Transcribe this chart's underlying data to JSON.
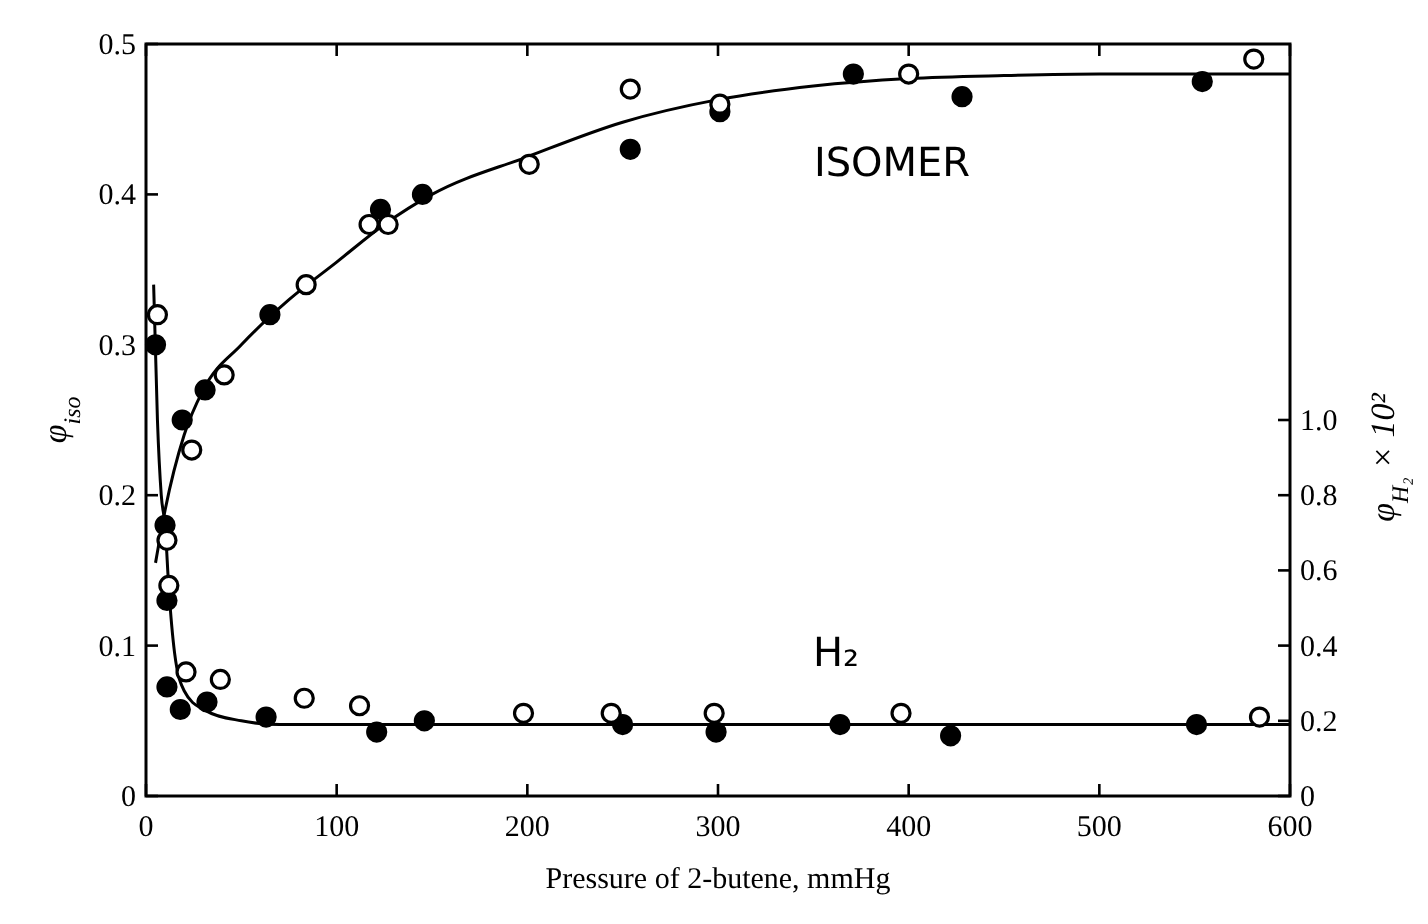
{
  "chart_data": {
    "type": "scatter",
    "xlabel": "Pressure of 2-butene, mmHg",
    "ylabel": "φ$_{iso}$",
    "y2label": "φ$_{H₂}$ × 10²",
    "xlim": [
      0,
      600
    ],
    "xticks": [
      0,
      100,
      200,
      300,
      400,
      500,
      600
    ],
    "ylim": [
      0,
      0.5
    ],
    "yticks": [
      0,
      0.1,
      0.2,
      0.3,
      0.4,
      0.5
    ],
    "y2lim": [
      0,
      2.0
    ],
    "y2ticks": [
      0,
      0.2,
      0.4,
      0.6,
      0.8,
      {
        "value": 1,
        "label": "1.0"
      }
    ],
    "marker": "circle",
    "grid": false,
    "annotations": [
      "ISOMER",
      "H₂"
    ],
    "series": [
      {
        "color": "#000000",
        "x": [
          19,
          31,
          65,
          123,
          145,
          254,
          301,
          371,
          428,
          554
        ],
        "values": [
          0.25,
          0.27,
          0.32,
          0.39,
          0.4,
          0.43,
          0.455,
          0.48,
          0.465,
          0.475
        ]
      },
      {
        "color": "#ffffff",
        "x": [
          24,
          41,
          84,
          117,
          127,
          201,
          254,
          301,
          400,
          581
        ],
        "values": [
          0.23,
          0.28,
          0.34,
          0.38,
          0.38,
          0.42,
          0.47,
          0.46,
          0.48,
          0.49
        ]
      },
      {
        "axis": "y2",
        "color": "#000000",
        "x": [
          5,
          10,
          11,
          11,
          18,
          32,
          63,
          121,
          146,
          250,
          299,
          364,
          422,
          551
        ],
        "values": [
          1.2,
          0.72,
          0.52,
          0.29,
          0.23,
          0.25,
          0.21,
          0.17,
          0.2,
          0.19,
          0.17,
          0.19,
          0.16,
          0.19
        ]
      },
      {
        "axis": "y2",
        "color": "#ffffff",
        "x": [
          6,
          11,
          12,
          21,
          39,
          83,
          112,
          198,
          244,
          298,
          396,
          584
        ],
        "values": [
          1.28,
          0.68,
          0.56,
          0.33,
          0.31,
          0.26,
          0.24,
          0.22,
          0.22,
          0.22,
          0.22,
          0.21
        ]
      },
      {
        "type": "line",
        "color": "#000000",
        "marker": "none",
        "x": [
          5,
          10,
          20,
          30,
          50,
          75,
          100,
          125,
          150,
          200,
          250,
          300,
          350,
          400,
          450,
          500,
          600
        ],
        "values": [
          0.155,
          0.19,
          0.24,
          0.27,
          0.3,
          0.33,
          0.355,
          0.38,
          0.4,
          0.425,
          0.448,
          0.463,
          0.472,
          0.477,
          0.479,
          0.48,
          0.48
        ]
      },
      {
        "type": "line",
        "axis": "y2",
        "color": "#000000",
        "marker": "none",
        "x": [
          4,
          6,
          8,
          10,
          12,
          15,
          20,
          30,
          50,
          70,
          100,
          600
        ],
        "values": [
          1.36,
          1.0,
          0.8,
          0.72,
          0.55,
          0.38,
          0.28,
          0.23,
          0.2,
          0.19,
          0.19,
          0.19
        ]
      }
    ]
  }
}
